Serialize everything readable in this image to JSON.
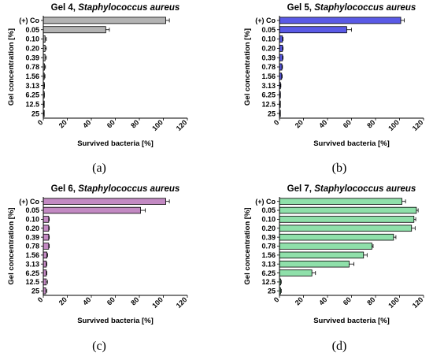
{
  "chart_data": [
    {
      "type": "bar",
      "orientation": "horizontal",
      "title": "Gel 4,",
      "title_species": "Staphylococcus aureus",
      "xlabel": "Survived bacteria [%]",
      "ylabel": "Gel concentration [%]",
      "xlim": [
        0,
        120
      ],
      "xticks": [
        "0",
        "20",
        "40",
        "60",
        "80",
        "100",
        "120"
      ],
      "categories": [
        "(+) Co",
        "0.05",
        "0.10",
        "0.20",
        "0.39",
        "0.78",
        "1.56",
        "3.13",
        "6.25",
        "12.5",
        "25"
      ],
      "values": [
        102,
        52,
        1.5,
        1.5,
        1.5,
        1.0,
        0.8,
        0.5,
        0.5,
        0.3,
        0.2
      ],
      "errors": [
        3,
        3,
        1,
        1,
        1,
        0.8,
        0.6,
        0.5,
        0.4,
        0.3,
        0.2
      ],
      "color": "#b3b3b3",
      "panel_label": "(a)"
    },
    {
      "type": "bar",
      "orientation": "horizontal",
      "title": "Gel 5,",
      "title_species": "Staphylococcus aureus",
      "xlabel": "Survived bacteria [%]",
      "ylabel": "Gel concentration [%]",
      "xlim": [
        0,
        120
      ],
      "xticks": [
        "0",
        "20",
        "40",
        "60",
        "80",
        "100",
        "120"
      ],
      "categories": [
        "(+) Co",
        "0.05",
        "0.10",
        "0.20",
        "0.39",
        "0.78",
        "1.56",
        "3.13",
        "6.25",
        "12.5",
        "25"
      ],
      "values": [
        101,
        56,
        2.5,
        2.5,
        2.5,
        2.0,
        1.8,
        0.8,
        0.5,
        0.3,
        0.2
      ],
      "errors": [
        3,
        4,
        0.5,
        0.5,
        0.5,
        0.5,
        0.5,
        0.4,
        0.3,
        0.2,
        0.2
      ],
      "color": "#5a5ae6",
      "panel_label": "(b)"
    },
    {
      "type": "bar",
      "orientation": "horizontal",
      "title": "Gel 6,",
      "title_species": "Staphylococcus aureus",
      "xlabel": "Survived bacteria [%]",
      "ylabel": "Gel concentration [%]",
      "xlim": [
        0,
        120
      ],
      "xticks": [
        "0",
        "20",
        "40",
        "60",
        "80",
        "100",
        "120"
      ],
      "categories": [
        "(+) Co",
        "0.05",
        "0.10",
        "0.20",
        "0.39",
        "0.78",
        "1.56",
        "3.13",
        "6.25",
        "12.5",
        "25"
      ],
      "values": [
        102,
        81,
        4.5,
        4.5,
        4.5,
        4.5,
        3.0,
        2.5,
        2.5,
        2.5,
        2.0
      ],
      "errors": [
        3,
        4,
        0.5,
        0.5,
        0.5,
        0.5,
        0.6,
        0.5,
        0.5,
        1.0,
        1.0
      ],
      "color": "#c38ac3",
      "panel_label": "(c)"
    },
    {
      "type": "bar",
      "orientation": "horizontal",
      "title": "Gel 7,",
      "title_species": "Staphylococcus aureus",
      "xlabel": "Survived bacteria [%]",
      "ylabel": "Gel concentration [%]",
      "xlim": [
        0,
        120
      ],
      "xticks": [
        "0",
        "20",
        "40",
        "60",
        "80",
        "100",
        "120"
      ],
      "categories": [
        "(+) Co",
        "0.05",
        "0.10",
        "0.20",
        "0.39",
        "0.78",
        "1.56",
        "3.13",
        "6.25",
        "12.5",
        "25"
      ],
      "values": [
        102,
        114,
        112,
        110,
        95,
        77,
        70,
        58,
        27,
        1,
        1
      ],
      "errors": [
        3,
        1.5,
        1.5,
        3,
        2,
        1,
        3,
        4,
        3,
        0.5,
        0.5
      ],
      "color": "#8fe0aa",
      "panel_label": "(d)"
    }
  ]
}
